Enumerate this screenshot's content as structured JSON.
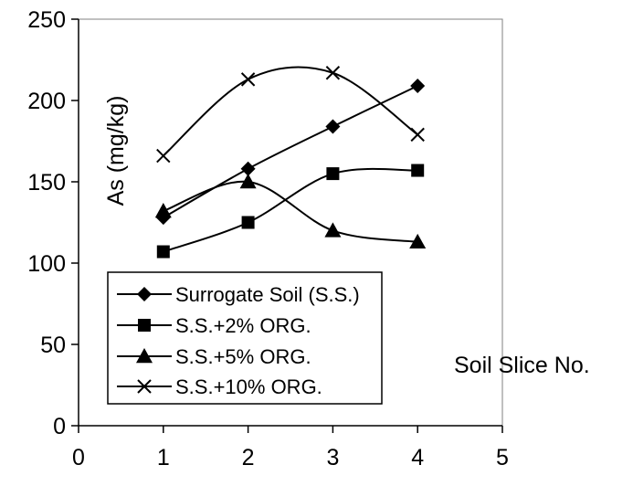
{
  "chart_data": {
    "type": "line",
    "xlabel": "Soil Slice No.",
    "ylabel": "As (mg/kg)",
    "xlim": [
      0,
      5
    ],
    "ylim": [
      0,
      250
    ],
    "x_ticks": [
      "0",
      "1",
      "2",
      "3",
      "4",
      "5"
    ],
    "y_ticks": [
      "0",
      "50",
      "100",
      "150",
      "200",
      "250"
    ],
    "grid": false,
    "legend_position": "lower-left",
    "smooth": true,
    "series": [
      {
        "name": "Surrogate Soil (S.S.)",
        "marker": "diamond",
        "x": [
          1,
          2,
          3,
          4
        ],
        "y": [
          128,
          158,
          184,
          209
        ]
      },
      {
        "name": "S.S.+2% ORG.",
        "marker": "square",
        "x": [
          1,
          2,
          3,
          4
        ],
        "y": [
          107,
          125,
          155,
          157
        ]
      },
      {
        "name": "S.S.+5% ORG.",
        "marker": "triangle",
        "x": [
          1,
          2,
          3,
          4
        ],
        "y": [
          132,
          150,
          120,
          113
        ]
      },
      {
        "name": "S.S.+10% ORG.",
        "marker": "x",
        "x": [
          1,
          2,
          3,
          4
        ],
        "y": [
          166,
          213,
          217,
          179
        ]
      }
    ],
    "colors": {
      "line": "#000000",
      "background": "#ffffff",
      "plot_border": "#808080"
    }
  }
}
